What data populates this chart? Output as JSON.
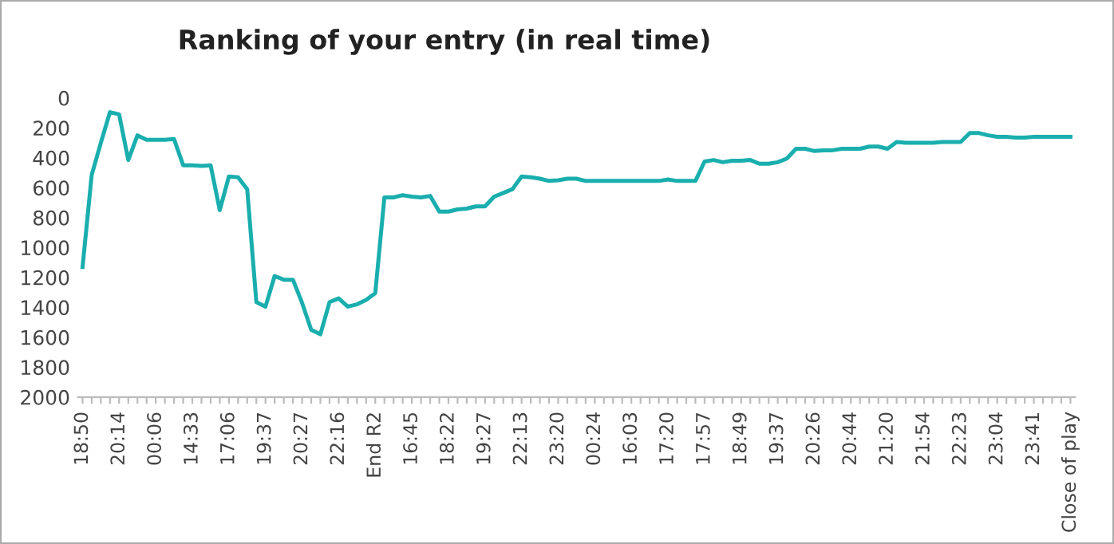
{
  "chart_data": {
    "type": "line",
    "title": "Ranking of your entry (in real time)",
    "categories": [
      "18:50",
      null,
      null,
      null,
      "20:14",
      null,
      null,
      null,
      "00:06",
      null,
      null,
      null,
      "14:33",
      null,
      null,
      null,
      "17:06",
      null,
      null,
      null,
      "19:37",
      null,
      null,
      null,
      "20:27",
      null,
      null,
      null,
      "22:16",
      null,
      null,
      null,
      "End R2",
      null,
      null,
      null,
      "16:45",
      null,
      null,
      null,
      "18:22",
      null,
      null,
      null,
      "19:27",
      null,
      null,
      null,
      "22:13",
      null,
      null,
      null,
      "23:20",
      null,
      null,
      null,
      "00:24",
      null,
      null,
      null,
      "16:03",
      null,
      null,
      null,
      "17:20",
      null,
      null,
      null,
      "17:57",
      null,
      null,
      null,
      "18:49",
      null,
      null,
      null,
      "19:37",
      null,
      null,
      null,
      "20:26",
      null,
      null,
      null,
      "20:44",
      null,
      null,
      null,
      "21:20",
      null,
      null,
      null,
      "21:54",
      null,
      null,
      null,
      "22:23",
      null,
      null,
      null,
      "23:04",
      null,
      null,
      null,
      "23:41",
      null,
      null,
      null,
      "Close of play"
    ],
    "series": [
      {
        "color": "#1aaeae",
        "values": [
          1130,
          515,
          300,
          95,
          110,
          415,
          250,
          280,
          280,
          280,
          275,
          450,
          450,
          455,
          450,
          750,
          525,
          530,
          610,
          1365,
          1395,
          1190,
          1215,
          1215,
          1370,
          1550,
          1580,
          1365,
          1340,
          1395,
          1380,
          1350,
          1305,
          665,
          665,
          650,
          660,
          665,
          655,
          760,
          760,
          745,
          740,
          725,
          725,
          660,
          635,
          610,
          525,
          530,
          540,
          555,
          550,
          540,
          540,
          555,
          555,
          555,
          555,
          555,
          555,
          555,
          555,
          555,
          545,
          555,
          555,
          555,
          425,
          415,
          430,
          420,
          420,
          415,
          440,
          440,
          430,
          405,
          340,
          340,
          355,
          350,
          350,
          340,
          340,
          340,
          325,
          325,
          340,
          295,
          300,
          300,
          300,
          300,
          295,
          295,
          295,
          235,
          235,
          250,
          260,
          260,
          265,
          265,
          260,
          260,
          260,
          260,
          260
        ]
      }
    ],
    "ylim": [
      2000,
      0
    ],
    "yticks": [
      0,
      200,
      400,
      600,
      800,
      1000,
      1200,
      1400,
      1600,
      1800,
      2000
    ],
    "grid": false,
    "marker": "none",
    "line_style": "solid"
  }
}
